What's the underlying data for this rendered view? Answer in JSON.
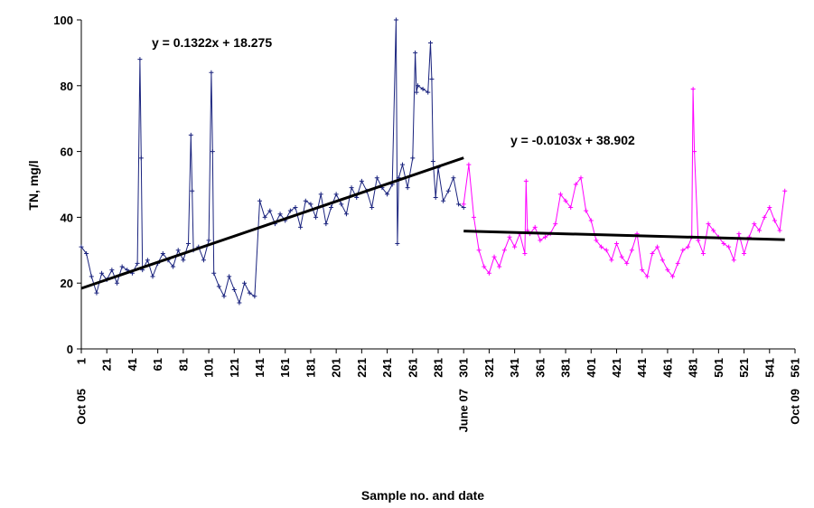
{
  "chart_data": {
    "type": "line",
    "title": "",
    "xlabel": "Sample no. and date",
    "ylabel": "TN, mg/l",
    "xlim": [
      1,
      561
    ],
    "ylim": [
      0,
      100
    ],
    "grid": false,
    "x_ticks": [
      1,
      21,
      41,
      61,
      81,
      101,
      121,
      141,
      161,
      181,
      201,
      221,
      241,
      261,
      281,
      301,
      321,
      341,
      361,
      381,
      401,
      421,
      441,
      461,
      481,
      501,
      521,
      541,
      561
    ],
    "y_ticks": [
      0,
      20,
      40,
      60,
      80,
      100
    ],
    "date_labels": [
      {
        "x": 1,
        "label": "Oct 05"
      },
      {
        "x": 301,
        "label": "June 07"
      },
      {
        "x": 561,
        "label": "Oct 09"
      }
    ],
    "series": [
      {
        "color": "#1a237e",
        "marker": "+",
        "x": [
          1,
          5,
          9,
          13,
          17,
          21,
          25,
          29,
          33,
          37,
          41,
          45,
          47,
          48,
          49,
          53,
          57,
          61,
          65,
          69,
          73,
          77,
          81,
          85,
          87,
          88,
          89,
          93,
          97,
          101,
          103,
          104,
          105,
          109,
          113,
          117,
          121,
          125,
          129,
          133,
          137,
          141,
          145,
          149,
          153,
          157,
          161,
          165,
          169,
          173,
          177,
          181,
          185,
          189,
          193,
          197,
          201,
          205,
          209,
          213,
          217,
          221,
          225,
          229,
          233,
          237,
          241,
          245,
          248,
          249,
          250,
          253,
          257,
          261,
          263,
          264,
          265,
          269,
          273,
          275,
          276,
          277,
          279,
          281,
          285,
          289,
          293,
          297,
          301
        ],
        "y": [
          31,
          29,
          22,
          17,
          23,
          21,
          24,
          20,
          25,
          24,
          23,
          26,
          88,
          58,
          24,
          27,
          22,
          26,
          29,
          27,
          25,
          30,
          27,
          32,
          65,
          48,
          30,
          31,
          27,
          33,
          84,
          60,
          23,
          19,
          16,
          22,
          18,
          14,
          20,
          17,
          16,
          45,
          40,
          42,
          38,
          41,
          39,
          42,
          43,
          37,
          45,
          44,
          40,
          47,
          38,
          43,
          47,
          44,
          41,
          49,
          46,
          51,
          48,
          43,
          52,
          49,
          47,
          50,
          100,
          32,
          52,
          56,
          49,
          58,
          90,
          78,
          80,
          79,
          78,
          93,
          82,
          57,
          46,
          55,
          45,
          48,
          52,
          44,
          43
        ]
      },
      {
        "color": "#ff00ff",
        "marker": "+",
        "x": [
          301,
          305,
          309,
          313,
          317,
          321,
          325,
          329,
          333,
          337,
          341,
          345,
          349,
          350,
          351,
          353,
          357,
          361,
          365,
          369,
          373,
          377,
          381,
          385,
          389,
          393,
          397,
          401,
          405,
          409,
          413,
          417,
          421,
          425,
          429,
          433,
          437,
          441,
          445,
          449,
          453,
          457,
          461,
          465,
          469,
          473,
          477,
          480,
          481,
          482,
          485,
          489,
          493,
          497,
          501,
          505,
          509,
          513,
          517,
          521,
          525,
          529,
          533,
          537,
          541,
          545,
          549,
          553
        ],
        "y": [
          44,
          56,
          40,
          30,
          25,
          23,
          28,
          25,
          30,
          34,
          31,
          35,
          29,
          51,
          36,
          35,
          37,
          33,
          34,
          35,
          38,
          47,
          45,
          43,
          50,
          52,
          42,
          39,
          33,
          31,
          30,
          27,
          32,
          28,
          26,
          30,
          35,
          24,
          22,
          29,
          31,
          27,
          24,
          22,
          26,
          30,
          31,
          34,
          79,
          60,
          33,
          29,
          38,
          36,
          34,
          32,
          31,
          27,
          35,
          29,
          34,
          38,
          36,
          40,
          43,
          39,
          36,
          48
        ]
      }
    ],
    "trendlines": [
      {
        "color": "#000000",
        "x": [
          1,
          301
        ],
        "y": [
          18.4072,
          58.0672
        ],
        "equation": "y = 0.1322x + 18.275"
      },
      {
        "color": "#000000",
        "x": [
          301,
          553
        ],
        "y": [
          35.8017,
          33.2061
        ],
        "equation": "y = -0.0103x + 38.902"
      }
    ]
  }
}
